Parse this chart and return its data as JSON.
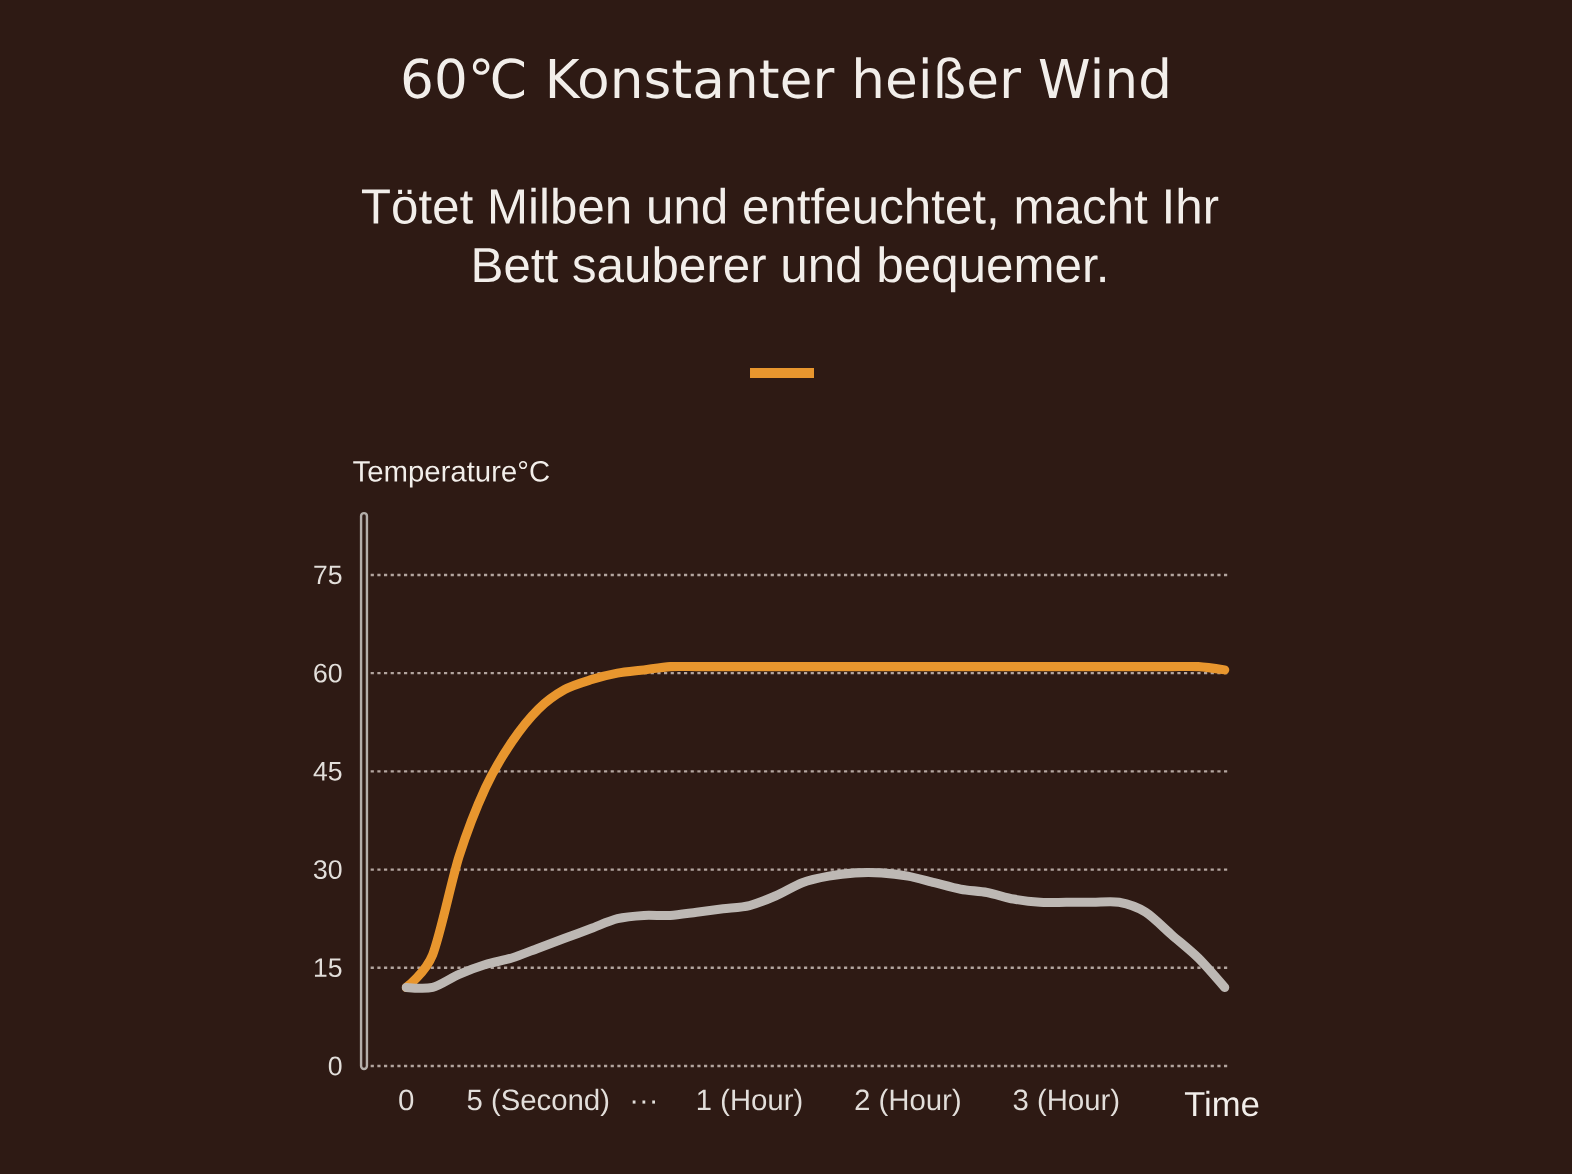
{
  "chart_data": {
    "type": "line",
    "title": "60℃ Konstanter heißer Wind",
    "subtitle": "Tötet Milben und entfeuchtet, macht Ihr Bett sauberer und bequemer.",
    "ylabel": "Temperature°C",
    "xlabel": "Time",
    "categories": [
      "0",
      null,
      null,
      null,
      null,
      "5 (Second)",
      null,
      null,
      null,
      "···",
      null,
      null,
      null,
      "1 (Hour)",
      null,
      null,
      null,
      null,
      null,
      "2 (Hour)",
      null,
      null,
      null,
      null,
      null,
      "3 (Hour)",
      null,
      null,
      null,
      null,
      null,
      null
    ],
    "ylim": [
      0,
      84
    ],
    "yticks": [
      0,
      15,
      30,
      45,
      60,
      75
    ],
    "grid": "y",
    "marker": "none",
    "line_style": "solid",
    "series": [
      {
        "color": "#e8962e",
        "values": [
          12,
          17,
          32,
          42.5,
          49.5,
          54.5,
          57.5,
          59,
          60,
          60.5,
          61,
          61,
          61,
          61,
          61,
          61,
          61,
          61,
          61,
          61,
          61,
          61,
          61,
          61,
          61,
          61,
          61,
          61,
          61,
          61,
          61,
          60.5
        ]
      },
      {
        "color": "#bdb8b4",
        "values": [
          12,
          12,
          14,
          15.5,
          16.5,
          18,
          19.5,
          21,
          22.5,
          23,
          23,
          23.5,
          24,
          24.5,
          26,
          28,
          29,
          29.5,
          29.5,
          29,
          28,
          27,
          26.5,
          25.5,
          25,
          25,
          25,
          25,
          23.5,
          20,
          16.5,
          12
        ]
      }
    ]
  }
}
